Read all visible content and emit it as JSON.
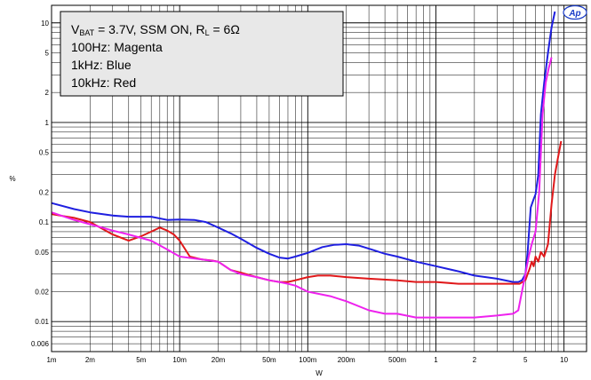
{
  "chart_data": {
    "type": "line",
    "xscale": "log",
    "yscale": "log",
    "xlabel": "W",
    "ylabel": "%",
    "xlim": [
      0.001,
      15
    ],
    "ylim": [
      0.005,
      15
    ],
    "grid": true,
    "x_ticks": [
      {
        "value": 0.001,
        "label": "1m"
      },
      {
        "value": 0.002,
        "label": "2m"
      },
      {
        "value": 0.005,
        "label": "5m"
      },
      {
        "value": 0.01,
        "label": "10m"
      },
      {
        "value": 0.02,
        "label": "20m"
      },
      {
        "value": 0.05,
        "label": "50m"
      },
      {
        "value": 0.1,
        "label": "100m"
      },
      {
        "value": 0.2,
        "label": "200m"
      },
      {
        "value": 0.5,
        "label": "500m"
      },
      {
        "value": 1,
        "label": "1"
      },
      {
        "value": 2,
        "label": "2"
      },
      {
        "value": 5,
        "label": "5"
      },
      {
        "value": 10,
        "label": "10"
      }
    ],
    "y_ticks": [
      {
        "value": 10,
        "label": "10"
      },
      {
        "value": 5,
        "label": "5"
      },
      {
        "value": 2,
        "label": "2"
      },
      {
        "value": 1,
        "label": "1"
      },
      {
        "value": 0.5,
        "label": "0.5"
      },
      {
        "value": 0.2,
        "label": "0.2"
      },
      {
        "value": 0.1,
        "label": "0.1"
      },
      {
        "value": 0.05,
        "label": "0.05"
      },
      {
        "value": 0.02,
        "label": "0.02"
      },
      {
        "value": 0.01,
        "label": "0.01"
      },
      {
        "value": 0.006,
        "label": "0.006"
      }
    ],
    "legend_placement": "top-left",
    "annotation": {
      "line1": {
        "a": "V",
        "a_sub": "BAT",
        "b": " = 3.7V, SSM ON, R",
        "b_sub": "L",
        "c": " = 6Ω"
      },
      "lines": [
        "100Hz: Magenta",
        "1kHz: Blue",
        "10kHz: Red"
      ]
    },
    "series": [
      {
        "color": "#1f1fe0",
        "x": [
          0.001,
          0.0015,
          0.002,
          0.003,
          0.004,
          0.006,
          0.008,
          0.01,
          0.013,
          0.016,
          0.02,
          0.025,
          0.03,
          0.04,
          0.05,
          0.06,
          0.07,
          0.08,
          0.1,
          0.13,
          0.16,
          0.2,
          0.25,
          0.3,
          0.4,
          0.5,
          0.7,
          1,
          1.5,
          2,
          3,
          4,
          4.4,
          4.7,
          5,
          5.2,
          5.5,
          5.8,
          6,
          6.3,
          6.6,
          7,
          7.5,
          8,
          8.5
        ],
        "y": [
          0.155,
          0.135,
          0.125,
          0.116,
          0.113,
          0.113,
          0.105,
          0.106,
          0.105,
          0.1,
          0.088,
          0.077,
          0.068,
          0.055,
          0.048,
          0.044,
          0.043,
          0.045,
          0.049,
          0.056,
          0.059,
          0.06,
          0.058,
          0.054,
          0.048,
          0.045,
          0.04,
          0.036,
          0.032,
          0.029,
          0.027,
          0.025,
          0.025,
          0.026,
          0.03,
          0.05,
          0.14,
          0.17,
          0.19,
          0.3,
          1.2,
          2.5,
          5.0,
          9.0,
          13.0
        ]
      },
      {
        "color": "#e0181a",
        "x": [
          0.001,
          0.0015,
          0.002,
          0.003,
          0.004,
          0.005,
          0.006,
          0.007,
          0.008,
          0.009,
          0.01,
          0.012,
          0.015,
          0.018,
          0.02,
          0.025,
          0.03,
          0.04,
          0.05,
          0.06,
          0.07,
          0.08,
          0.1,
          0.12,
          0.15,
          0.2,
          0.3,
          0.5,
          0.7,
          1,
          1.5,
          2,
          3,
          4,
          4.5,
          5,
          5.2,
          5.4,
          5.6,
          5.8,
          6,
          6.3,
          6.6,
          7,
          7.5,
          8,
          8.5,
          9,
          9.5
        ],
        "y": [
          0.12,
          0.11,
          0.1,
          0.075,
          0.065,
          0.072,
          0.08,
          0.088,
          0.082,
          0.075,
          0.065,
          0.045,
          0.042,
          0.041,
          0.04,
          0.033,
          0.031,
          0.028,
          0.026,
          0.025,
          0.025,
          0.026,
          0.028,
          0.029,
          0.029,
          0.028,
          0.027,
          0.026,
          0.025,
          0.025,
          0.024,
          0.024,
          0.024,
          0.024,
          0.024,
          0.026,
          0.03,
          0.034,
          0.04,
          0.036,
          0.045,
          0.04,
          0.05,
          0.045,
          0.06,
          0.15,
          0.3,
          0.45,
          0.65
        ]
      },
      {
        "color": "#ee22ee",
        "x": [
          0.001,
          0.0015,
          0.002,
          0.003,
          0.004,
          0.006,
          0.008,
          0.01,
          0.015,
          0.02,
          0.025,
          0.03,
          0.04,
          0.05,
          0.06,
          0.07,
          0.08,
          0.1,
          0.15,
          0.2,
          0.3,
          0.4,
          0.5,
          0.7,
          1,
          1.5,
          2,
          3,
          4,
          4.4,
          4.7,
          5,
          5.3,
          5.6,
          6,
          6.4,
          6.8,
          7.2,
          7.6,
          8
        ],
        "y": [
          0.125,
          0.105,
          0.095,
          0.082,
          0.075,
          0.065,
          0.053,
          0.045,
          0.042,
          0.04,
          0.033,
          0.03,
          0.028,
          0.026,
          0.025,
          0.024,
          0.023,
          0.02,
          0.018,
          0.016,
          0.013,
          0.012,
          0.012,
          0.011,
          0.011,
          0.011,
          0.011,
          0.0115,
          0.012,
          0.013,
          0.02,
          0.03,
          0.045,
          0.06,
          0.08,
          0.2,
          1.2,
          2.5,
          3.5,
          4.5
        ]
      }
    ]
  },
  "logo": {
    "text": "Ap"
  }
}
